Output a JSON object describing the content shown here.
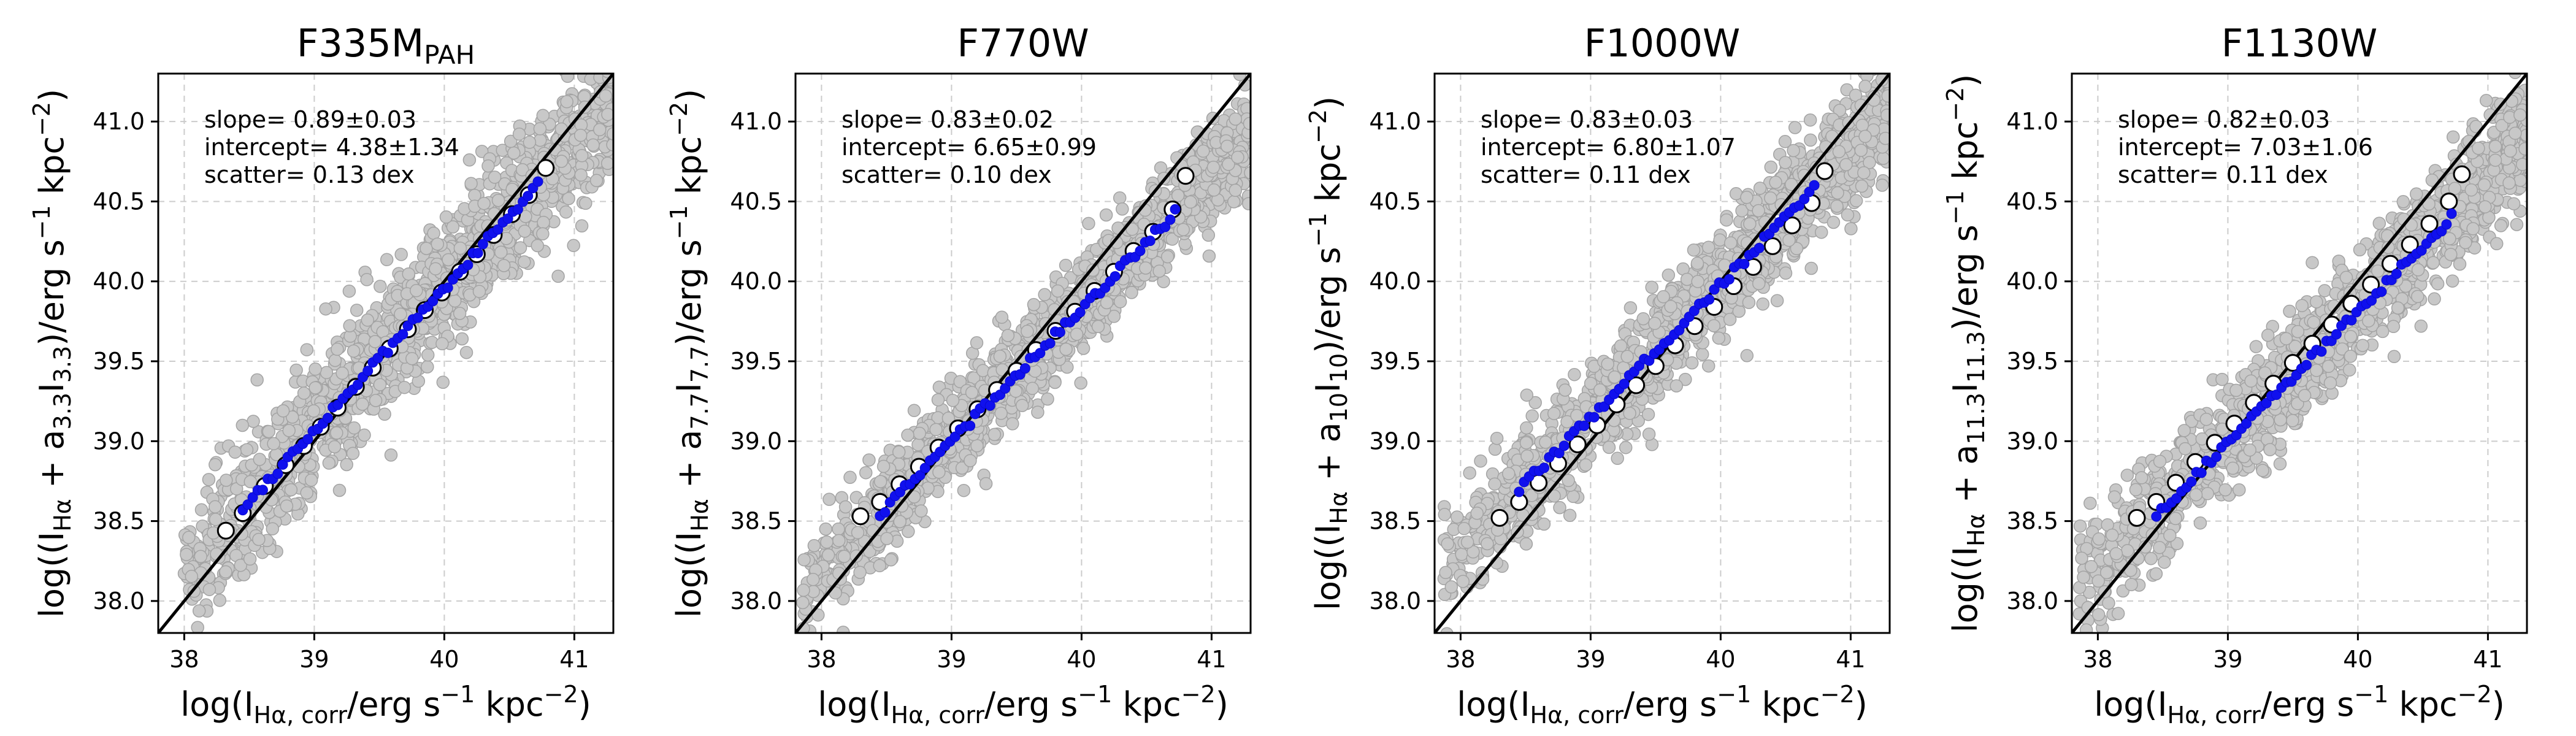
{
  "chart_data": [
    {
      "type": "scatter",
      "title_main": "F335M",
      "title_sub": "PAH",
      "ylabel_feature": "3.3",
      "xlabel_parts": {
        "pre": "log(I",
        "sub": "Hα, corr",
        "mid": "/erg s",
        "sup1": "−1",
        "kpc": " kpc",
        "sup2": "−2",
        "post": ")"
      },
      "ylabel_parts": {
        "pre": "log((I",
        "sub_ha": "Hα",
        "plus": " + a",
        "sub_a": "3.3",
        "i": "I",
        "sub_i": "3.3",
        "mid": ")/erg s",
        "sup1": "−1",
        "kpc": " kpc",
        "sup2": "−2",
        "post": ")"
      },
      "xlim": [
        37.8,
        41.3
      ],
      "ylim": [
        37.8,
        41.3
      ],
      "xticks": [
        "38",
        "39",
        "40",
        "41"
      ],
      "yticks": [
        "38.0",
        "38.5",
        "39.0",
        "39.5",
        "40.0",
        "40.5",
        "41.0"
      ],
      "annotations": {
        "slope": "slope= 0.89±0.03",
        "intercept": "intercept= 4.38±1.34",
        "scatter": "scatter= 0.13 dex"
      },
      "fit": {
        "slope": 0.89,
        "intercept": 4.38,
        "scatter": 0.13
      },
      "cloud": {
        "x_min": 38.0,
        "x_max": 41.3,
        "n_points": 1400
      },
      "binned_medians": {
        "x": [
          38.32,
          38.45,
          38.62,
          38.78,
          38.92,
          39.05,
          39.18,
          39.32,
          39.45,
          39.58,
          39.72,
          39.85,
          39.98,
          40.12,
          40.25,
          40.38,
          40.52,
          40.65,
          40.78
        ],
        "y": [
          38.44,
          38.55,
          38.72,
          38.85,
          38.97,
          39.09,
          39.21,
          39.34,
          39.46,
          39.58,
          39.7,
          39.82,
          39.93,
          40.06,
          40.17,
          40.29,
          40.42,
          40.54,
          40.71
        ]
      },
      "blue_points": {
        "x_min": 38.45,
        "x_max": 40.72,
        "n_points": 60
      }
    },
    {
      "type": "scatter",
      "title_main": "F770W",
      "title_sub": "",
      "ylabel_parts": {
        "pre": "log((I",
        "sub_ha": "Hα",
        "plus": " + a",
        "sub_a": "7.7",
        "i": "I",
        "sub_i": "7.7",
        "mid": ")/erg s",
        "sup1": "−1",
        "kpc": " kpc",
        "sup2": "−2",
        "post": ")"
      },
      "xlabel_parts": {
        "pre": "log(I",
        "sub": "Hα, corr",
        "mid": "/erg s",
        "sup1": "−1",
        "kpc": " kpc",
        "sup2": "−2",
        "post": ")"
      },
      "xlim": [
        37.8,
        41.3
      ],
      "ylim": [
        37.8,
        41.3
      ],
      "xticks": [
        "38",
        "39",
        "40",
        "41"
      ],
      "yticks": [
        "38.0",
        "38.5",
        "39.0",
        "39.5",
        "40.0",
        "40.5",
        "41.0"
      ],
      "annotations": {
        "slope": "slope= 0.83±0.02",
        "intercept": "intercept= 6.65±0.99",
        "scatter": "scatter= 0.10 dex"
      },
      "fit": {
        "slope": 0.83,
        "intercept": 6.65,
        "scatter": 0.1
      },
      "cloud": {
        "x_min": 37.85,
        "x_max": 41.3,
        "n_points": 1400
      },
      "binned_medians": {
        "x": [
          38.3,
          38.45,
          38.6,
          38.75,
          38.9,
          39.05,
          39.2,
          39.35,
          39.5,
          39.65,
          39.8,
          39.95,
          40.1,
          40.25,
          40.4,
          40.55,
          40.7,
          40.8
        ],
        "y": [
          38.53,
          38.62,
          38.73,
          38.84,
          38.96,
          39.08,
          39.2,
          39.32,
          39.44,
          39.57,
          39.69,
          39.81,
          39.94,
          40.06,
          40.19,
          40.31,
          40.45,
          40.66
        ]
      },
      "blue_points": {
        "x_min": 38.45,
        "x_max": 40.72,
        "n_points": 60
      }
    },
    {
      "type": "scatter",
      "title_main": "F1000W",
      "title_sub": "",
      "ylabel_parts": {
        "pre": "log((I",
        "sub_ha": "Hα",
        "plus": " + a",
        "sub_a": "10",
        "i": "I",
        "sub_i": "10",
        "mid": ")/erg s",
        "sup1": "−1",
        "kpc": " kpc",
        "sup2": "−2",
        "post": ")"
      },
      "xlabel_parts": {
        "pre": "log(I",
        "sub": "Hα, corr",
        "mid": "/erg s",
        "sup1": "−1",
        "kpc": " kpc",
        "sup2": "−2",
        "post": ")"
      },
      "xlim": [
        37.8,
        41.3
      ],
      "ylim": [
        37.8,
        41.3
      ],
      "xticks": [
        "38",
        "39",
        "40",
        "41"
      ],
      "yticks": [
        "38.0",
        "38.5",
        "39.0",
        "39.5",
        "40.0",
        "40.5",
        "41.0"
      ],
      "annotations": {
        "slope": "slope= 0.83±0.03",
        "intercept": "intercept= 6.80±1.07",
        "scatter": "scatter= 0.11 dex"
      },
      "fit": {
        "slope": 0.83,
        "intercept": 6.8,
        "scatter": 0.11
      },
      "cloud": {
        "x_min": 37.85,
        "x_max": 41.3,
        "n_points": 1400
      },
      "binned_medians": {
        "x": [
          38.3,
          38.45,
          38.6,
          38.75,
          38.9,
          39.05,
          39.2,
          39.35,
          39.5,
          39.65,
          39.8,
          39.95,
          40.1,
          40.25,
          40.4,
          40.55,
          40.7,
          40.8
        ],
        "y": [
          38.52,
          38.62,
          38.74,
          38.86,
          38.98,
          39.1,
          39.23,
          39.35,
          39.47,
          39.6,
          39.72,
          39.84,
          39.97,
          40.09,
          40.22,
          40.35,
          40.49,
          40.69
        ]
      },
      "blue_points": {
        "x_min": 38.45,
        "x_max": 40.72,
        "n_points": 60
      }
    },
    {
      "type": "scatter",
      "title_main": "F1130W",
      "title_sub": "",
      "ylabel_parts": {
        "pre": "log((I",
        "sub_ha": "Hα",
        "plus": " + a",
        "sub_a": "11.3",
        "i": "I",
        "sub_i": "11.3",
        "mid": ")/erg s",
        "sup1": "−1",
        "kpc": " kpc",
        "sup2": "−2",
        "post": ")"
      },
      "xlabel_parts": {
        "pre": "log(I",
        "sub": "Hα, corr",
        "mid": "/erg s",
        "sup1": "−1",
        "kpc": " kpc",
        "sup2": "−2",
        "post": ")"
      },
      "xlim": [
        37.8,
        41.3
      ],
      "ylim": [
        37.8,
        41.3
      ],
      "xticks": [
        "38",
        "39",
        "40",
        "41"
      ],
      "yticks": [
        "38.0",
        "38.5",
        "39.0",
        "39.5",
        "40.0",
        "40.5",
        "41.0"
      ],
      "annotations": {
        "slope": "slope= 0.82±0.03",
        "intercept": "intercept= 7.03±1.06",
        "scatter": "scatter= 0.11 dex"
      },
      "fit": {
        "slope": 0.82,
        "intercept": 7.03,
        "scatter": 0.11
      },
      "cloud": {
        "x_min": 37.85,
        "x_max": 41.3,
        "n_points": 1400
      },
      "binned_medians": {
        "x": [
          38.3,
          38.45,
          38.6,
          38.75,
          38.9,
          39.05,
          39.2,
          39.35,
          39.5,
          39.65,
          39.8,
          39.95,
          40.1,
          40.25,
          40.4,
          40.55,
          40.7,
          40.8
        ],
        "y": [
          38.52,
          38.62,
          38.74,
          38.87,
          38.99,
          39.11,
          39.24,
          39.36,
          39.49,
          39.61,
          39.73,
          39.86,
          39.98,
          40.11,
          40.23,
          40.36,
          40.5,
          40.67
        ]
      },
      "blue_points": {
        "x_min": 38.45,
        "x_max": 40.72,
        "n_points": 60
      }
    }
  ],
  "colors": {
    "cloud": "#c8c8c8",
    "median_face": "#ffffff",
    "blue": "#1010ee",
    "line": "#000000",
    "grid": "#cccccc"
  }
}
